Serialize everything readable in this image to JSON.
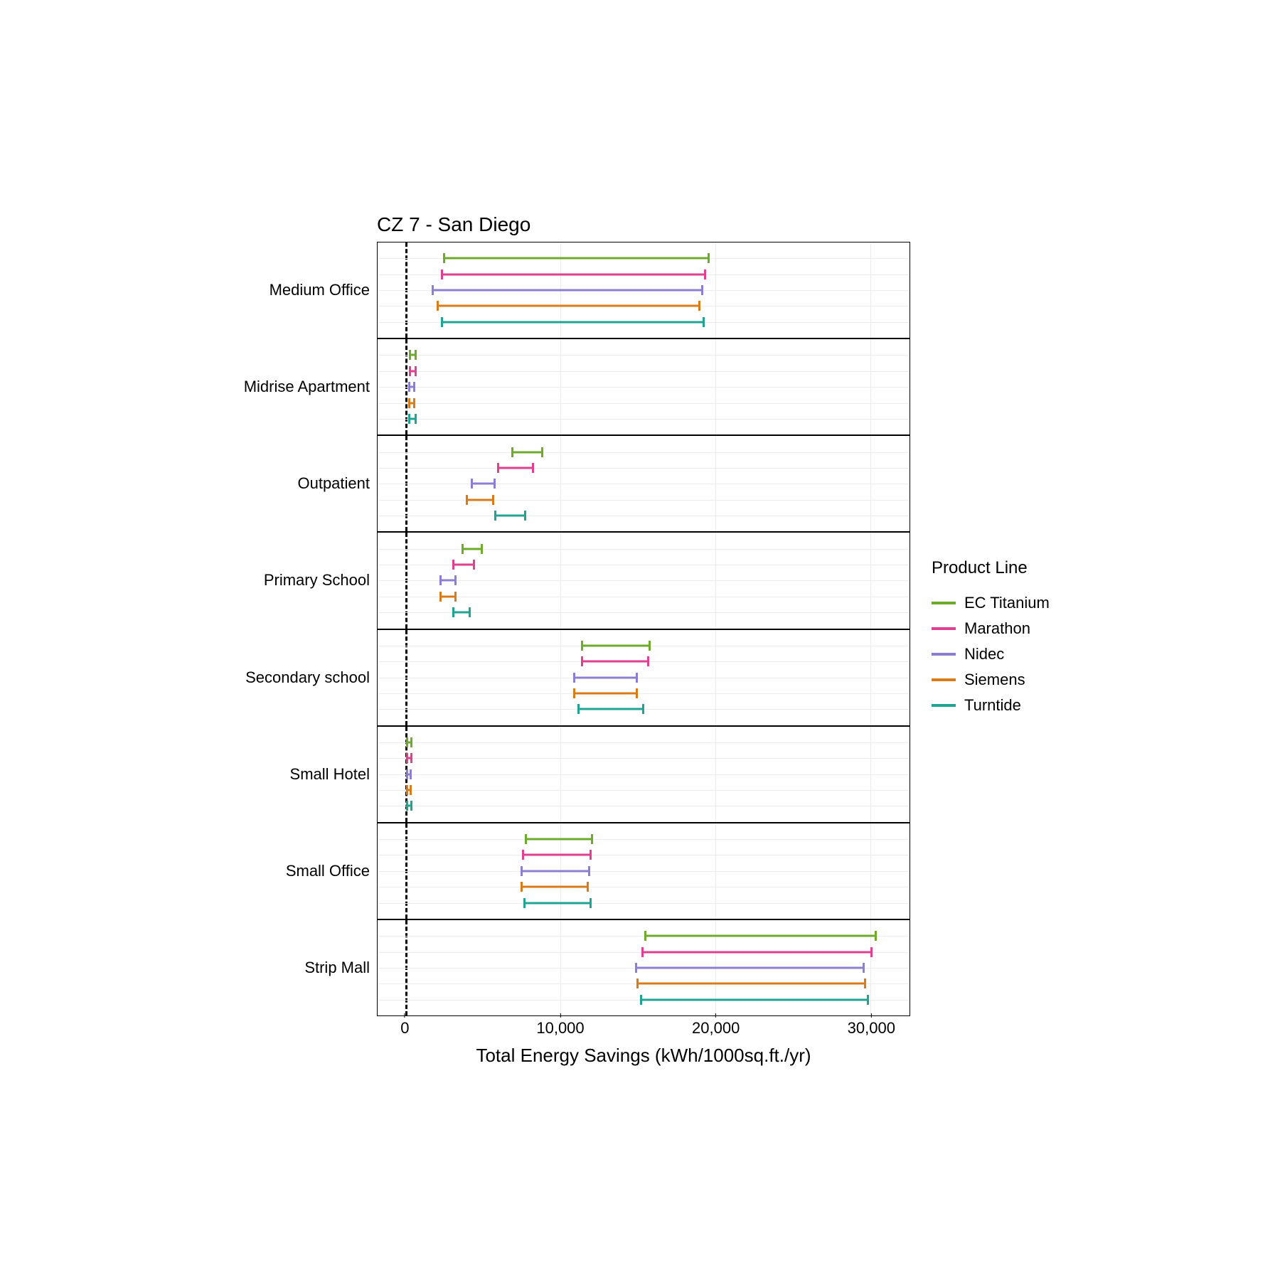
{
  "chart": {
    "title": "CZ 7 - San Diego",
    "x_label": "Total Energy Savings (kWh/1000sq.ft./yr)",
    "type": "errorbar-range",
    "x_min": -1800,
    "x_max": 32500,
    "x_ticks": [
      {
        "value": 0,
        "label": "0"
      },
      {
        "value": 10000,
        "label": "10,000"
      },
      {
        "value": 20000,
        "label": "20,000"
      },
      {
        "value": 30000,
        "label": "30,000"
      }
    ],
    "background_color": "#ffffff",
    "grid_color": "#ececec",
    "zero_line_dash": "dashed",
    "bar_line_width": 3,
    "cap_height": 14,
    "title_fontsize": 28,
    "axis_label_fontsize": 26,
    "tick_fontsize": 22,
    "facet_label_fontsize": 22,
    "legend": {
      "title": "Product Line",
      "items": [
        {
          "key": "ec_titanium",
          "label": "EC Titanium",
          "color": "#6eab2a"
        },
        {
          "key": "marathon",
          "label": "Marathon",
          "color": "#e0408f"
        },
        {
          "key": "nidec",
          "label": "Nidec",
          "color": "#8c7fd1"
        },
        {
          "key": "siemens",
          "label": "Siemens",
          "color": "#d97b18"
        },
        {
          "key": "turntide",
          "label": "Turntide",
          "color": "#1fa393"
        }
      ]
    },
    "facets": [
      {
        "label": "Medium Office",
        "series": [
          {
            "product": "ec_titanium",
            "low": 2400,
            "high": 19600
          },
          {
            "product": "marathon",
            "low": 2300,
            "high": 19400
          },
          {
            "product": "nidec",
            "low": 1700,
            "high": 19200
          },
          {
            "product": "siemens",
            "low": 2000,
            "high": 19000
          },
          {
            "product": "turntide",
            "low": 2300,
            "high": 19300
          }
        ]
      },
      {
        "label": "Midrise Apartment",
        "series": [
          {
            "product": "ec_titanium",
            "low": 200,
            "high": 700
          },
          {
            "product": "marathon",
            "low": 200,
            "high": 700
          },
          {
            "product": "nidec",
            "low": 150,
            "high": 650
          },
          {
            "product": "siemens",
            "low": 150,
            "high": 650
          },
          {
            "product": "turntide",
            "low": 150,
            "high": 700
          }
        ]
      },
      {
        "label": "Outpatient",
        "series": [
          {
            "product": "ec_titanium",
            "low": 6800,
            "high": 8900
          },
          {
            "product": "marathon",
            "low": 5900,
            "high": 8300
          },
          {
            "product": "nidec",
            "low": 4200,
            "high": 5800
          },
          {
            "product": "siemens",
            "low": 3900,
            "high": 5700
          },
          {
            "product": "turntide",
            "low": 5700,
            "high": 7800
          }
        ]
      },
      {
        "label": "Primary School",
        "series": [
          {
            "product": "ec_titanium",
            "low": 3600,
            "high": 5000
          },
          {
            "product": "marathon",
            "low": 3000,
            "high": 4500
          },
          {
            "product": "nidec",
            "low": 2200,
            "high": 3300
          },
          {
            "product": "siemens",
            "low": 2200,
            "high": 3300
          },
          {
            "product": "turntide",
            "low": 3000,
            "high": 4200
          }
        ]
      },
      {
        "label": "Secondary school",
        "series": [
          {
            "product": "ec_titanium",
            "low": 11300,
            "high": 15800
          },
          {
            "product": "marathon",
            "low": 11300,
            "high": 15700
          },
          {
            "product": "nidec",
            "low": 10800,
            "high": 15000
          },
          {
            "product": "siemens",
            "low": 10800,
            "high": 15000
          },
          {
            "product": "turntide",
            "low": 11100,
            "high": 15400
          }
        ]
      },
      {
        "label": "Small Hotel",
        "series": [
          {
            "product": "ec_titanium",
            "low": 50,
            "high": 450
          },
          {
            "product": "marathon",
            "low": 50,
            "high": 450
          },
          {
            "product": "nidec",
            "low": 30,
            "high": 420
          },
          {
            "product": "siemens",
            "low": 30,
            "high": 420
          },
          {
            "product": "turntide",
            "low": 40,
            "high": 450
          }
        ]
      },
      {
        "label": "Small Office",
        "series": [
          {
            "product": "ec_titanium",
            "low": 7700,
            "high": 12100
          },
          {
            "product": "marathon",
            "low": 7500,
            "high": 12000
          },
          {
            "product": "nidec",
            "low": 7400,
            "high": 11900
          },
          {
            "product": "siemens",
            "low": 7400,
            "high": 11800
          },
          {
            "product": "turntide",
            "low": 7600,
            "high": 12000
          }
        ]
      },
      {
        "label": "Strip Mall",
        "series": [
          {
            "product": "ec_titanium",
            "low": 15400,
            "high": 30400
          },
          {
            "product": "marathon",
            "low": 15200,
            "high": 30100
          },
          {
            "product": "nidec",
            "low": 14800,
            "high": 29600
          },
          {
            "product": "siemens",
            "low": 14900,
            "high": 29700
          },
          {
            "product": "turntide",
            "low": 15100,
            "high": 29900
          }
        ]
      }
    ]
  }
}
